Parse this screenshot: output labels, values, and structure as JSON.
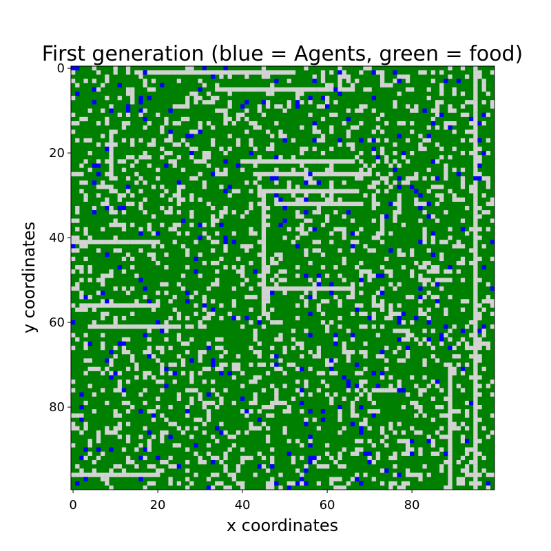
{
  "chart_data": {
    "type": "heatmap",
    "title": "First generation (blue = Agents, green = food)",
    "xlabel": "x coordinates",
    "ylabel": "y coordinates",
    "xlim": [
      -0.5,
      99.5
    ],
    "ylim": [
      99.5,
      -0.5
    ],
    "grid_size": [
      100,
      100
    ],
    "x_ticks": [
      0,
      20,
      40,
      60,
      80
    ],
    "y_ticks": [
      0,
      20,
      40,
      60,
      80
    ],
    "legend": {
      "agent": "blue = Agents",
      "food": "green = food",
      "empty": "light grey = empty"
    },
    "colors": {
      "food": "#008000",
      "agent": "#0000ff",
      "empty": "#d3d3d3"
    },
    "cell_fractions": {
      "food": 0.78,
      "empty": 0.19,
      "agent": 0.03
    },
    "grid_encoding": "random_sample_seeded",
    "seed": 12345,
    "highlighted_empty_lines": [
      {
        "orientation": "horizontal",
        "y": 1,
        "x_range": [
          15,
          52
        ]
      },
      {
        "orientation": "horizontal",
        "y": 5,
        "x_range": [
          34,
          66
        ]
      },
      {
        "orientation": "horizontal",
        "y": 22,
        "x_range": [
          40,
          66
        ]
      },
      {
        "orientation": "horizontal",
        "y": 25,
        "x_range": [
          43,
          70
        ]
      },
      {
        "orientation": "horizontal",
        "y": 29,
        "x_range": [
          45,
          66
        ]
      },
      {
        "orientation": "horizontal",
        "y": 32,
        "x_range": [
          48,
          68
        ]
      },
      {
        "orientation": "horizontal",
        "y": 41,
        "x_range": [
          0,
          20
        ]
      },
      {
        "orientation": "horizontal",
        "y": 52,
        "x_range": [
          45,
          66
        ]
      },
      {
        "orientation": "horizontal",
        "y": 56,
        "x_range": [
          2,
          20
        ]
      },
      {
        "orientation": "horizontal",
        "y": 61,
        "x_range": [
          4,
          24
        ]
      },
      {
        "orientation": "horizontal",
        "y": 96,
        "x_range": [
          0,
          20
        ]
      },
      {
        "orientation": "vertical",
        "x": 45,
        "y_range": [
          30,
          57
        ]
      },
      {
        "orientation": "vertical",
        "x": 95,
        "y_range": [
          0,
          99
        ]
      },
      {
        "orientation": "vertical",
        "x": 9,
        "y_range": [
          15,
          26
        ]
      },
      {
        "orientation": "vertical",
        "x": 89,
        "y_range": [
          70,
          99
        ]
      }
    ]
  }
}
